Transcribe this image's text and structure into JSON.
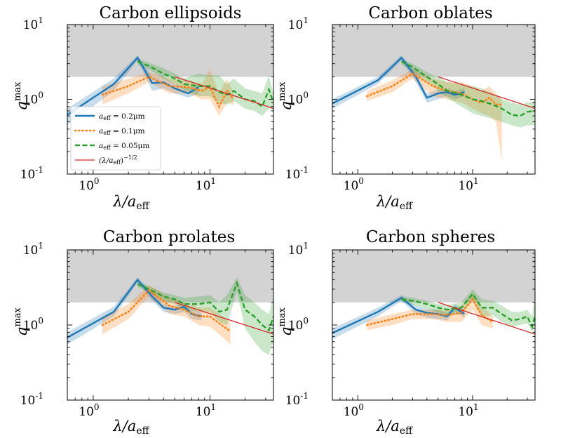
{
  "colors": {
    "s02": "#1f77b4",
    "s01": "#ff7f0e",
    "s005": "#2ca02c",
    "powerlaw": "#d62728",
    "shade": "#d3d3d3"
  },
  "axes_labels": {
    "xlabel_main": "λ/a",
    "xlabel_sub": "eff",
    "ylabel_main": "q",
    "ylabel_sup": "max"
  },
  "ticks": {
    "x": [
      {
        "base": "10",
        "exp": "0",
        "value": 1
      },
      {
        "base": "10",
        "exp": "1",
        "value": 10
      }
    ],
    "y": [
      {
        "base": "10",
        "exp": "-1",
        "value": 0.1
      },
      {
        "base": "10",
        "exp": "0",
        "value": 1
      },
      {
        "base": "10",
        "exp": "1",
        "value": 10
      }
    ]
  },
  "legend": [
    {
      "key": "s02",
      "prefix": "a",
      "sub": "eff",
      "suffix": " = 0.2μm",
      "style": "solid"
    },
    {
      "key": "s01",
      "prefix": "a",
      "sub": "eff",
      "suffix": " = 0.1μm",
      "style": "dotted"
    },
    {
      "key": "s005",
      "prefix": "a",
      "sub": "eff",
      "suffix": " = 0.05μm",
      "style": "dashed"
    },
    {
      "key": "powerlaw",
      "prefix": "(λ/a",
      "sub": "eff",
      "suffix": ")",
      "sup": "−1/2",
      "style": "thin"
    }
  ],
  "chart_data": [
    {
      "type": "line",
      "title": "Carbon ellipsoids",
      "xscale": "log",
      "yscale": "log",
      "xlim": [
        0.6,
        35
      ],
      "ylim": [
        0.1,
        10
      ],
      "shaded_band": [
        2,
        10
      ],
      "series": [
        {
          "key": "s02",
          "x": [
            0.6,
            1.5,
            2.4,
            3.2,
            4.0,
            5.0,
            6.5,
            8.0
          ],
          "y": [
            0.62,
            1.6,
            3.6,
            1.65,
            1.68,
            1.4,
            1.2,
            1.45
          ],
          "lo": [
            0.45,
            1.3,
            3.3,
            1.3,
            1.4,
            1.2,
            1.05,
            1.2
          ],
          "hi": [
            0.75,
            1.9,
            3.9,
            2.0,
            2.0,
            1.6,
            1.4,
            1.6
          ]
        },
        {
          "key": "s01",
          "x": [
            1.2,
            2.0,
            3.0,
            4.5,
            6.5,
            8.5,
            10,
            12,
            14,
            16
          ],
          "y": [
            1.15,
            1.5,
            2.0,
            1.5,
            1.45,
            1.3,
            1.45,
            0.8,
            1.3,
            1.0
          ],
          "lo": [
            0.85,
            1.2,
            1.7,
            1.2,
            1.2,
            1.0,
            1.0,
            0.6,
            0.9,
            0.85
          ],
          "hi": [
            1.5,
            1.9,
            2.3,
            1.9,
            1.8,
            1.6,
            2.5,
            1.2,
            1.9,
            1.2
          ]
        },
        {
          "key": "s005",
          "x": [
            2.4,
            3.0,
            4.0,
            5.0,
            6.0,
            8.0,
            10,
            12,
            14,
            16,
            20,
            24,
            28,
            32,
            35
          ],
          "y": [
            3.2,
            2.8,
            2.2,
            1.9,
            1.6,
            1.5,
            1.5,
            1.25,
            1.15,
            1.3,
            1.0,
            0.95,
            0.8,
            1.35,
            0.9
          ],
          "lo": [
            2.9,
            2.5,
            1.9,
            1.6,
            1.35,
            1.1,
            1.1,
            0.9,
            0.85,
            0.95,
            0.75,
            0.7,
            0.6,
            0.75,
            0.7
          ],
          "hi": [
            3.5,
            3.1,
            2.6,
            2.2,
            1.9,
            2.2,
            2.1,
            2.1,
            1.6,
            1.9,
            1.4,
            1.3,
            1.2,
            2.1,
            1.2
          ]
        },
        {
          "key": "powerlaw",
          "x": [
            5,
            35
          ],
          "y": [
            2.0,
            0.756
          ]
        }
      ]
    },
    {
      "type": "line",
      "title": "Carbon oblates",
      "xscale": "log",
      "yscale": "log",
      "xlim": [
        0.6,
        35
      ],
      "ylim": [
        0.1,
        10
      ],
      "shaded_band": [
        2,
        10
      ],
      "series": [
        {
          "key": "s02",
          "x": [
            0.6,
            1.5,
            2.4,
            3.2,
            4.0,
            5.0,
            6.0,
            7.0,
            8.5
          ],
          "y": [
            0.88,
            1.8,
            3.6,
            2.0,
            1.05,
            1.2,
            1.25,
            1.15,
            1.25
          ],
          "lo": [
            0.75,
            1.6,
            3.3,
            1.7,
            0.9,
            1.0,
            1.1,
            1.0,
            1.1
          ],
          "hi": [
            1.0,
            2.0,
            3.9,
            2.3,
            1.2,
            1.35,
            1.4,
            1.3,
            1.4
          ]
        },
        {
          "key": "s01",
          "x": [
            1.2,
            2.0,
            3.0,
            4.5,
            6.0,
            8.0,
            10,
            12,
            14,
            16,
            18
          ],
          "y": [
            1.1,
            1.5,
            2.2,
            1.5,
            1.3,
            1.2,
            1.0,
            0.9,
            1.05,
            0.85,
            0.85
          ],
          "lo": [
            0.95,
            1.25,
            1.9,
            1.1,
            1.0,
            0.9,
            0.75,
            0.65,
            0.6,
            0.5,
            0.15
          ],
          "hi": [
            1.3,
            1.8,
            2.5,
            1.9,
            1.7,
            1.7,
            1.5,
            1.3,
            1.5,
            1.2,
            1.0
          ]
        },
        {
          "key": "s005",
          "x": [
            2.4,
            3.0,
            4.0,
            5.0,
            6.0,
            8.0,
            10,
            12,
            15,
            18,
            22,
            26,
            30,
            35
          ],
          "y": [
            3.2,
            2.7,
            2.0,
            1.6,
            1.3,
            1.15,
            1.0,
            0.95,
            0.85,
            0.75,
            0.62,
            0.6,
            0.68,
            0.7
          ],
          "lo": [
            2.9,
            2.4,
            1.7,
            1.3,
            1.05,
            0.8,
            0.65,
            0.6,
            0.55,
            0.5,
            0.45,
            0.42,
            0.45,
            0.45
          ],
          "hi": [
            3.5,
            3.0,
            2.3,
            2.0,
            1.7,
            1.6,
            1.5,
            1.4,
            1.2,
            1.0,
            0.9,
            0.85,
            0.9,
            0.95
          ]
        },
        {
          "key": "powerlaw",
          "x": [
            5,
            35
          ],
          "y": [
            2.0,
            0.756
          ]
        }
      ]
    },
    {
      "type": "line",
      "title": "Carbon prolates",
      "xscale": "log",
      "yscale": "log",
      "xlim": [
        0.6,
        35
      ],
      "ylim": [
        0.1,
        10
      ],
      "shaded_band": [
        2,
        10
      ],
      "series": [
        {
          "key": "s02",
          "x": [
            0.6,
            1.5,
            2.4,
            3.2,
            4.0,
            5.0,
            6.0,
            7.0,
            8.5
          ],
          "y": [
            0.68,
            1.5,
            4.0,
            2.4,
            1.7,
            1.6,
            1.75,
            1.4,
            1.3
          ],
          "lo": [
            0.55,
            1.3,
            3.7,
            2.1,
            1.5,
            1.4,
            1.5,
            1.2,
            1.15
          ],
          "hi": [
            0.8,
            1.75,
            4.3,
            2.7,
            1.9,
            1.8,
            2.0,
            1.6,
            1.45
          ]
        },
        {
          "key": "s01",
          "x": [
            1.2,
            2.0,
            3.0,
            4.5,
            6.0,
            8.0,
            10,
            12,
            15
          ],
          "y": [
            1.0,
            1.5,
            2.9,
            1.8,
            1.6,
            1.3,
            1.3,
            1.05,
            0.82
          ],
          "lo": [
            0.75,
            1.2,
            2.4,
            1.4,
            1.3,
            1.0,
            0.95,
            0.75,
            0.55
          ],
          "hi": [
            1.3,
            1.9,
            3.4,
            2.3,
            2.0,
            1.7,
            1.7,
            1.4,
            1.1
          ]
        },
        {
          "key": "s005",
          "x": [
            2.4,
            3.0,
            4.0,
            5.0,
            6.0,
            8.0,
            10,
            12,
            14,
            17,
            20,
            24,
            28,
            32,
            35
          ],
          "y": [
            3.5,
            3.0,
            2.4,
            2.2,
            1.9,
            1.9,
            2.0,
            1.5,
            1.6,
            3.6,
            1.6,
            1.3,
            1.0,
            0.85,
            1.3
          ],
          "lo": [
            3.2,
            2.7,
            2.1,
            1.9,
            1.6,
            1.5,
            1.5,
            1.1,
            1.0,
            2.8,
            0.9,
            0.6,
            0.45,
            0.4,
            0.6
          ],
          "hi": [
            3.8,
            3.3,
            2.7,
            2.5,
            2.3,
            2.4,
            2.5,
            2.0,
            2.5,
            4.3,
            2.5,
            2.0,
            1.6,
            1.4,
            2.4
          ]
        },
        {
          "key": "powerlaw",
          "x": [
            5,
            35
          ],
          "y": [
            2.0,
            0.756
          ]
        }
      ]
    },
    {
      "type": "line",
      "title": "Carbon spheres",
      "xscale": "log",
      "yscale": "log",
      "xlim": [
        0.6,
        35
      ],
      "ylim": [
        0.1,
        10
      ],
      "shaded_band": [
        2,
        10
      ],
      "series": [
        {
          "key": "s02",
          "x": [
            0.6,
            1.5,
            2.4,
            3.2,
            4.0,
            5.0,
            6.0,
            7.0,
            8.5
          ],
          "y": [
            0.78,
            1.5,
            2.3,
            1.6,
            1.45,
            1.4,
            1.3,
            1.7,
            1.4
          ],
          "lo": [
            0.65,
            1.3,
            2.1,
            1.4,
            1.25,
            1.2,
            1.15,
            1.5,
            1.25
          ],
          "hi": [
            0.9,
            1.7,
            2.5,
            1.8,
            1.65,
            1.6,
            1.45,
            1.9,
            1.55
          ]
        },
        {
          "key": "s01",
          "x": [
            1.2,
            2.0,
            3.0,
            4.5,
            6.0,
            8.0,
            10,
            12,
            15
          ],
          "y": [
            1.0,
            1.2,
            1.4,
            1.4,
            1.35,
            1.45,
            2.2,
            1.35,
            1.1
          ],
          "lo": [
            0.85,
            1.0,
            1.2,
            1.2,
            1.1,
            1.1,
            1.6,
            1.0,
            0.9
          ],
          "hi": [
            1.15,
            1.4,
            1.6,
            1.6,
            1.6,
            1.8,
            2.7,
            1.8,
            1.3
          ]
        },
        {
          "key": "s005",
          "x": [
            2.4,
            3.0,
            4.0,
            5.0,
            6.0,
            8.0,
            10,
            12,
            15,
            18,
            22,
            26,
            30,
            33,
            35
          ],
          "y": [
            2.2,
            2.1,
            1.9,
            1.7,
            1.6,
            1.7,
            2.6,
            1.7,
            1.7,
            1.4,
            1.15,
            1.2,
            1.3,
            0.95,
            1.3
          ],
          "lo": [
            2.0,
            1.85,
            1.65,
            1.45,
            1.35,
            1.4,
            2.1,
            1.3,
            1.35,
            1.1,
            0.95,
            1.0,
            1.05,
            0.8,
            1.0
          ],
          "hi": [
            2.4,
            2.3,
            2.1,
            1.9,
            1.85,
            2.0,
            3.0,
            2.2,
            2.1,
            1.8,
            1.5,
            1.5,
            1.6,
            1.3,
            2.5
          ]
        },
        {
          "key": "powerlaw",
          "x": [
            5,
            35
          ],
          "y": [
            2.0,
            0.756
          ]
        }
      ]
    }
  ]
}
